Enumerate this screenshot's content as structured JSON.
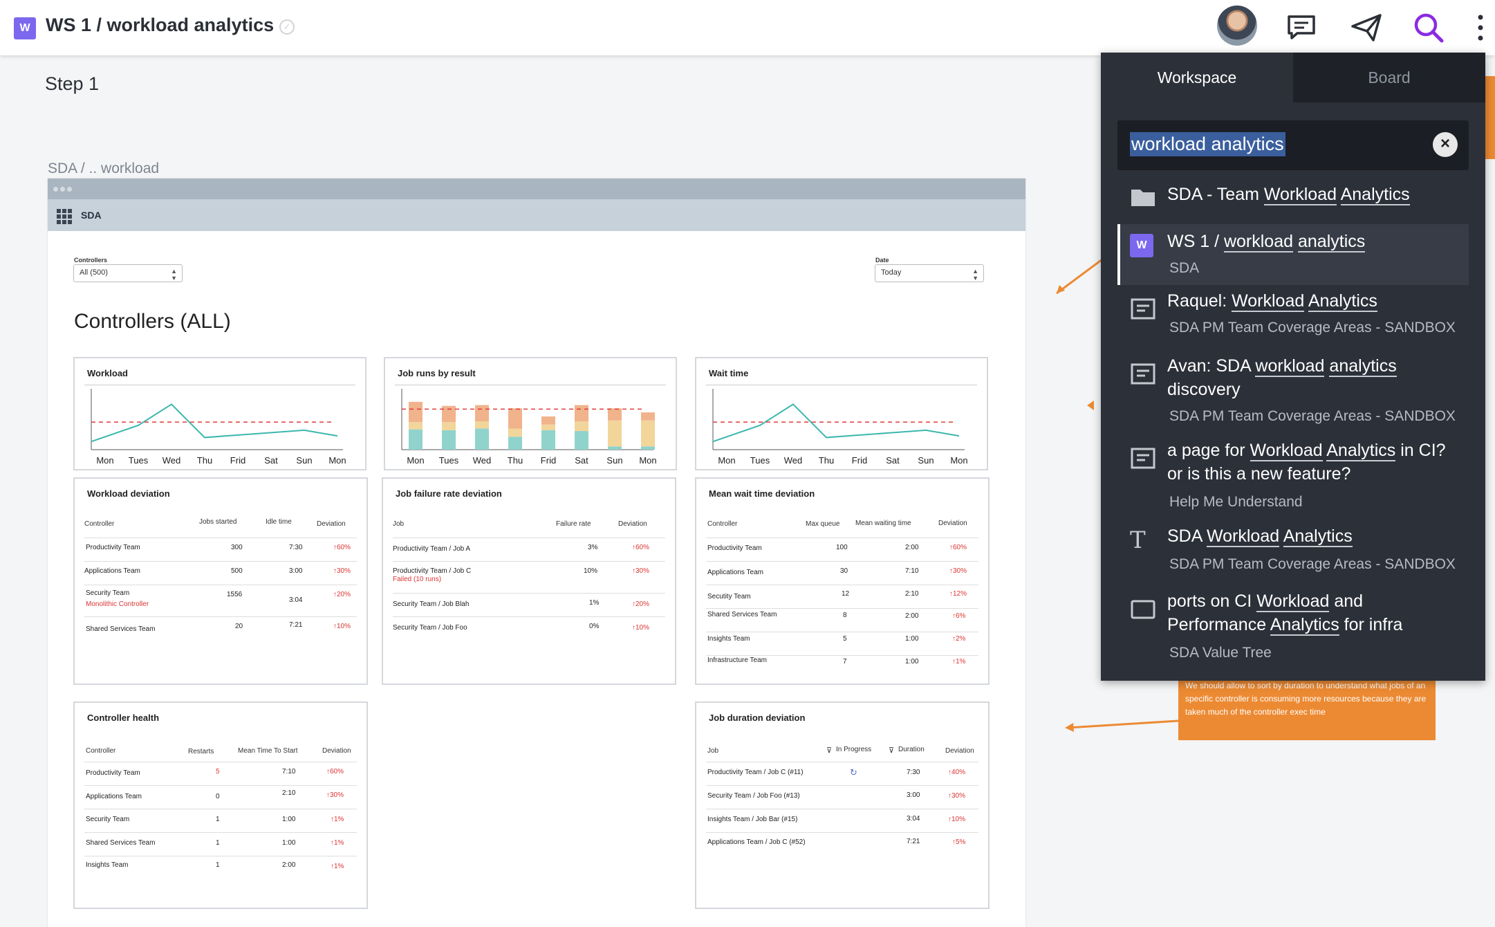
{
  "header": {
    "workspace_badge": "W",
    "title": "WS 1 / workload analytics",
    "verified_glyph": "✓",
    "icons": [
      "avatar",
      "comments-icon",
      "share-icon",
      "search-icon",
      "more-icon"
    ]
  },
  "canvas": {
    "step_title": "Step 1",
    "breadcrumb": "SDA / .. workload",
    "app_name": "SDA",
    "filters": {
      "controllers_label": "Controllers",
      "controllers_value": "All (500)",
      "date_label": "Date",
      "date_value": "Today"
    },
    "section_title": "Controllers (ALL)",
    "days": [
      "Mon",
      "Tues",
      "Wed",
      "Thu",
      "Frid",
      "Sat",
      "Sun",
      "Mon"
    ],
    "charts": [
      {
        "title": "Workload",
        "chart_data": {
          "type": "line",
          "categories": [
            "Mon",
            "Tues",
            "Wed",
            "Thu",
            "Frid",
            "Sat",
            "Sun",
            "Mon"
          ],
          "series": [
            {
              "values": [
                1,
                3,
                5.6,
                1.5,
                1.8,
                2.1,
                2.4,
                1.7
              ]
            }
          ],
          "threshold": 3.4,
          "ylim": [
            0,
            7
          ]
        }
      },
      {
        "title": "Job runs by result",
        "chart_data": {
          "type": "bar",
          "stacked": true,
          "categories": [
            "Mon",
            "Tues",
            "Wed",
            "Thu",
            "Frid",
            "Sat",
            "Sun",
            "Mon"
          ],
          "series": [
            {
              "color": "#8fd3cc",
              "values": [
                2.5,
                2.4,
                2.6,
                1.6,
                2.4,
                2.3,
                0.4,
                0.4
              ]
            },
            {
              "color": "#f2d59a",
              "values": [
                0.9,
                1.0,
                0.9,
                1.0,
                0.7,
                1.2,
                3.2,
                3.2
              ]
            },
            {
              "color": "#f0b38c",
              "values": [
                2.5,
                2.0,
                2.0,
                2.5,
                1.0,
                2.0,
                1.5,
                1.0
              ]
            }
          ],
          "threshold": 5,
          "ylim": [
            0,
            7
          ]
        }
      },
      {
        "title": "Wait time",
        "chart_data": {
          "type": "line",
          "categories": [
            "Mon",
            "Tues",
            "Wed",
            "Thu",
            "Frid",
            "Sat",
            "Sun",
            "Mon"
          ],
          "series": [
            {
              "values": [
                1,
                3,
                5.6,
                1.5,
                1.8,
                2.1,
                2.4,
                1.7
              ]
            }
          ],
          "threshold": 3.4,
          "ylim": [
            0,
            7
          ]
        }
      }
    ],
    "tables": {
      "workload_deviation": {
        "title": "Workload deviation",
        "headers": [
          "Controller",
          "Jobs started",
          "Idle time",
          "Deviation"
        ],
        "rows": [
          [
            "Productivity Team",
            "300",
            "7:30",
            "↑60%",
            ""
          ],
          [
            "Applications Team",
            "500",
            "3:00",
            "↑30%",
            ""
          ],
          [
            "Security Team",
            "1556",
            "3:04",
            "↑20%",
            "Monolithic Controller"
          ],
          [
            "Shared Services Team",
            "20",
            "7:21",
            "↑10%",
            ""
          ]
        ]
      },
      "job_failure": {
        "title": "Job failure rate deviation",
        "headers": [
          "Job",
          "Failure rate",
          "Deviation"
        ],
        "rows": [
          [
            "Productivity Team / Job A",
            "3%",
            "↑60%",
            ""
          ],
          [
            "Productivity Team / Job C",
            "10%",
            "↑30%",
            "Failed (10 runs)"
          ],
          [
            "Security Team / Job Blah",
            "1%",
            "↑20%",
            ""
          ],
          [
            "Security Team / Job Foo",
            "0%",
            "↑10%",
            ""
          ]
        ]
      },
      "mean_wait": {
        "title": "Mean wait time deviation",
        "headers": [
          "Controller",
          "Max queue",
          "Mean waiting time",
          "Deviation"
        ],
        "rows": [
          [
            "Productivity Team",
            "100",
            "2:00",
            "↑60%"
          ],
          [
            "Applications Team",
            "30",
            "7:10",
            "↑30%"
          ],
          [
            "Secutity Team",
            "12",
            "2:10",
            "↑12%"
          ],
          [
            "Shared Services Team",
            "8",
            "2:00",
            "↑6%"
          ],
          [
            "Insights Team",
            "5",
            "1:00",
            "↑2%"
          ],
          [
            "Infrastructure Team",
            "7",
            "1:00",
            "↑1%"
          ]
        ]
      },
      "controller_health": {
        "title": "Controller health",
        "headers": [
          "Controller",
          "Restarts",
          "Mean Time To Start",
          "Deviation"
        ],
        "rows": [
          [
            "Productivity Team",
            "5",
            "7:10",
            "↑60%"
          ],
          [
            "Applications Team",
            "0",
            "2:10",
            "↑30%"
          ],
          [
            "Security Team",
            "1",
            "1:00",
            "↑1%"
          ],
          [
            "Shared Services Team",
            "1",
            "1:00",
            "↑1%"
          ],
          [
            "Insights Team",
            "1",
            "2:00",
            "↑1%"
          ]
        ]
      },
      "job_duration": {
        "title": "Job duration deviation",
        "headers": [
          "Job",
          "In Progress",
          "Duration",
          "Deviation"
        ],
        "rows": [
          [
            "Productivity Team / Job C (#11)",
            "↻",
            "7:30",
            "↑40%"
          ],
          [
            "Security Team / Job Foo (#13)",
            "",
            "3:00",
            "↑30%"
          ],
          [
            "Insights Team / Job Bar (#15)",
            "",
            "3:04",
            "↑10%"
          ],
          [
            "Applications Team / Job C (#52)",
            "",
            "7:21",
            "↑5%"
          ]
        ]
      }
    },
    "note_text": "We should allow to sort by duration to understand what jobs of an specific controller is consuming more resources because they are taken much of the controller exec time"
  },
  "search_panel": {
    "tabs": [
      "Workspace",
      "Board"
    ],
    "active_tab": "Workspace",
    "query": "workload analytics",
    "results": [
      {
        "icon": "folder-icon",
        "title_html": "SDA - Team <u>Workload</u> <u>Analytics</u>",
        "subtitle": ""
      },
      {
        "icon": "workspace-icon",
        "title_html": "WS 1 / <u>workload</u> <u>analytics</u>",
        "subtitle": "SDA",
        "selected": true
      },
      {
        "icon": "page-icon",
        "title_html": "Raquel: <u>Workload</u> <u>Analytics</u>",
        "subtitle": "SDA PM Team Coverage Areas - SANDBOX"
      },
      {
        "icon": "page-icon",
        "title_html": "Avan: SDA <u>workload</u> <u>analytics</u> discovery",
        "subtitle": "SDA PM Team Coverage Areas - SANDBOX"
      },
      {
        "icon": "page-icon",
        "title_html": "a page for <u>Workload</u> <u>Analytics</u> in CI? or is this a new feature?",
        "subtitle": "Help Me Understand"
      },
      {
        "icon": "text-icon",
        "title_html": "SDA <u>Workload</u> <u>Analytics</u>",
        "subtitle": "SDA PM Team Coverage Areas - SANDBOX"
      },
      {
        "icon": "frame-icon",
        "title_html": "ports on CI <u>Workload</u> and Performance <u>Analytics</u> for infra",
        "subtitle": "SDA Value Tree"
      }
    ]
  }
}
